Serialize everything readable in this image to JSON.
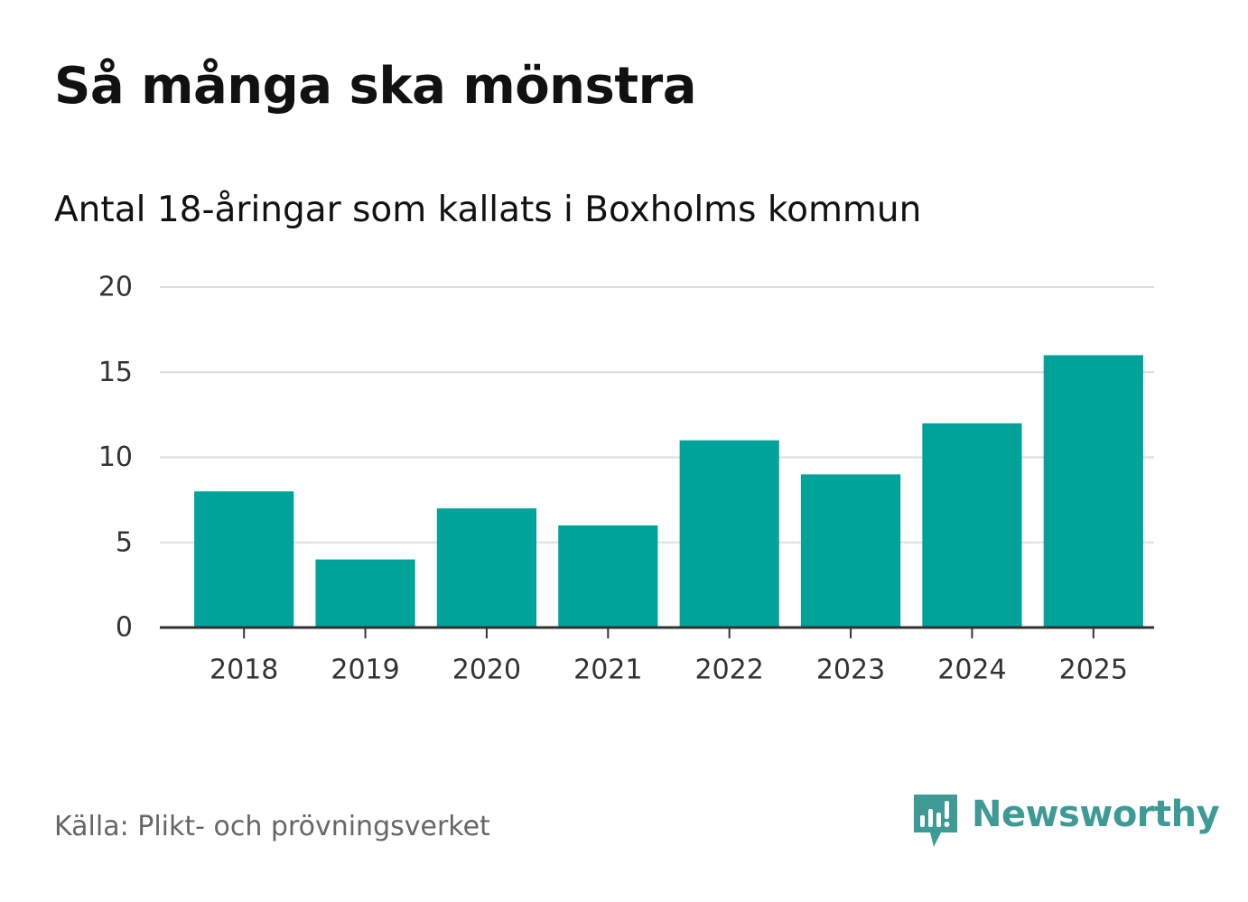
{
  "title": "Så många ska mönstra",
  "subtitle": "Antal 18-åringar som kallats i Boxholms kommun",
  "source": "Källa: Plikt- och prövningsverket",
  "brand": {
    "name": "Newsworthy",
    "icon": "newsworthy-logo-icon",
    "color": "#3d9a94"
  },
  "colors": {
    "bar": "#00a39a",
    "gridline": "#dddddd",
    "axis": "#333333",
    "tick_text": "#333333"
  },
  "chart_data": {
    "type": "bar",
    "title": "Så många ska mönstra",
    "subtitle": "Antal 18-åringar som kallats i Boxholms kommun",
    "categories": [
      "2018",
      "2019",
      "2020",
      "2021",
      "2022",
      "2023",
      "2024",
      "2025"
    ],
    "values": [
      8,
      4,
      7,
      6,
      11,
      9,
      12,
      16
    ],
    "xlabel": "",
    "ylabel": "",
    "ylim": [
      0,
      20
    ],
    "yticks": [
      0,
      5,
      10,
      15,
      20
    ],
    "grid": true,
    "legend": "none"
  }
}
